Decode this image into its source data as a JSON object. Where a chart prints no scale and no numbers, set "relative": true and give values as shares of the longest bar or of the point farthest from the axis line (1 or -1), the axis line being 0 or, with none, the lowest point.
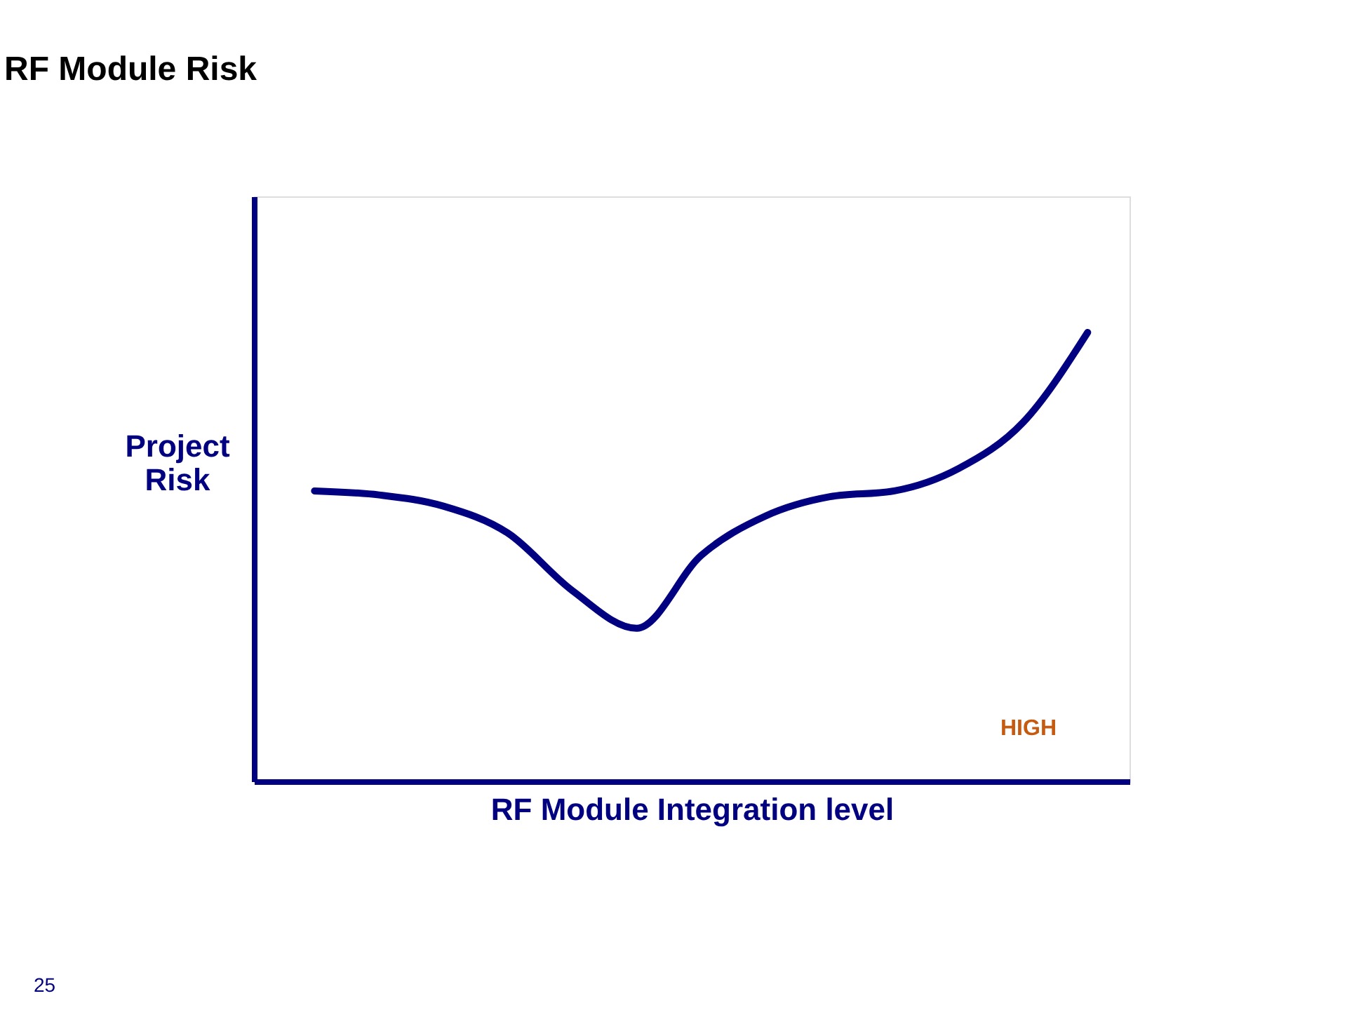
{
  "chart_data": {
    "type": "line",
    "title": "RF Module Risk",
    "xlabel": "RF Module Integration level",
    "ylabel": "Project Risk",
    "relative": true,
    "categories": [
      null,
      null,
      null,
      null,
      null,
      null,
      null,
      null,
      null,
      null,
      null,
      null,
      null
    ],
    "series": [
      {
        "color": "#000080",
        "values": [
          0.647,
          0.638,
          0.613,
          0.553,
          0.425,
          0.341,
          0.503,
          0.591,
          0.634,
          0.647,
          0.697,
          0.8,
          1.0
        ]
      }
    ],
    "annotations": [
      "HIGH",
      "25"
    ],
    "grid": false,
    "marker": "none",
    "line_style": "solid"
  }
}
